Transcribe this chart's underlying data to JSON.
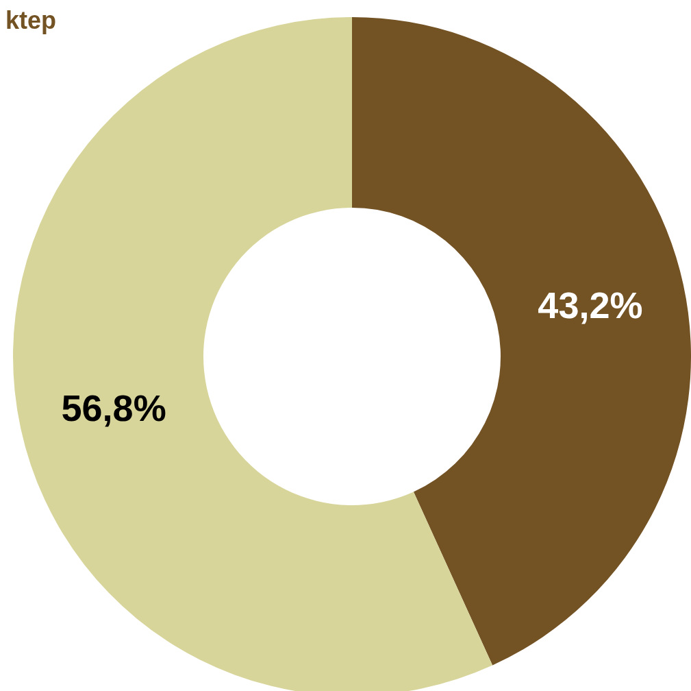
{
  "chart_data": {
    "type": "donut",
    "title": "ktep",
    "categories": [
      null,
      null
    ],
    "values": [
      43.2,
      56.8
    ],
    "colors": [
      "#735224",
      "#d8d59b"
    ],
    "value_labels": [
      "43,2%",
      "56,8%"
    ]
  }
}
